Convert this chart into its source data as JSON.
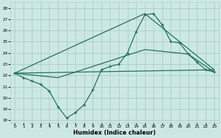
{
  "title": "",
  "xlabel": "Humidex (Indice chaleur)",
  "ylabel": "",
  "background_color": "#cce8e4",
  "grid_color": "#aacfcb",
  "line_color": "#1a6b5a",
  "x_ticks": [
    0,
    1,
    2,
    3,
    4,
    5,
    6,
    7,
    8,
    9,
    10,
    11,
    12,
    13,
    14,
    15,
    16,
    17,
    18,
    19,
    20,
    21,
    22,
    23
  ],
  "ylim": [
    17.8,
    28.5
  ],
  "xlim": [
    -0.5,
    23.5
  ],
  "yticks": [
    18,
    19,
    20,
    21,
    22,
    23,
    24,
    25,
    26,
    27,
    28
  ],
  "series1_x": [
    0,
    1,
    2,
    3,
    4,
    5,
    6,
    7,
    8,
    9,
    10,
    11,
    12,
    13,
    14,
    15,
    16,
    17,
    18,
    19,
    20,
    21,
    22,
    23
  ],
  "series1_y": [
    22.2,
    21.8,
    21.5,
    21.2,
    20.6,
    19.2,
    18.2,
    18.7,
    19.4,
    20.7,
    22.5,
    22.8,
    23.0,
    24.0,
    25.9,
    27.4,
    27.5,
    26.5,
    25.0,
    24.9,
    23.9,
    23.2,
    22.5,
    22.3
  ],
  "series2_x": [
    0,
    23
  ],
  "series2_y": [
    22.2,
    22.5
  ],
  "series3_x": [
    0,
    15,
    19,
    23
  ],
  "series3_y": [
    22.2,
    27.5,
    25.0,
    22.5
  ],
  "series4_x": [
    0,
    5,
    15,
    20,
    23
  ],
  "series4_y": [
    22.2,
    21.8,
    24.3,
    23.9,
    22.3
  ]
}
